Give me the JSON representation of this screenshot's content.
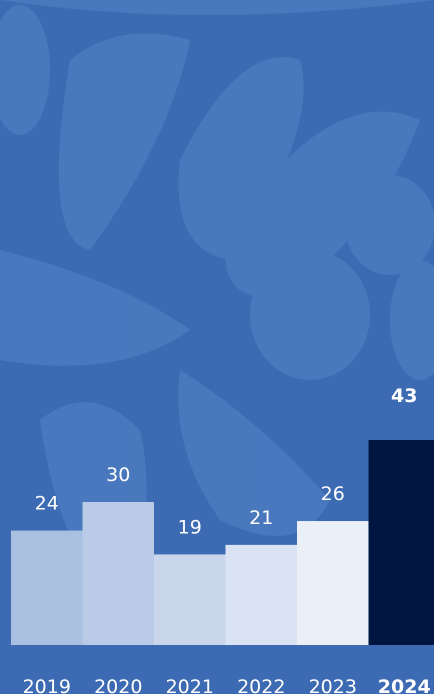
{
  "chart_data": {
    "type": "bar",
    "categories": [
      "2019",
      "2020",
      "2021",
      "2022",
      "2023",
      "2024"
    ],
    "values": [
      24,
      30,
      19,
      21,
      26,
      43
    ],
    "colors": [
      "#aac0e1",
      "#b9cbe6",
      "#c9d6ec",
      "#d9e3f3",
      "#eaeff8",
      "#001540"
    ],
    "highlight": 5
  }
}
